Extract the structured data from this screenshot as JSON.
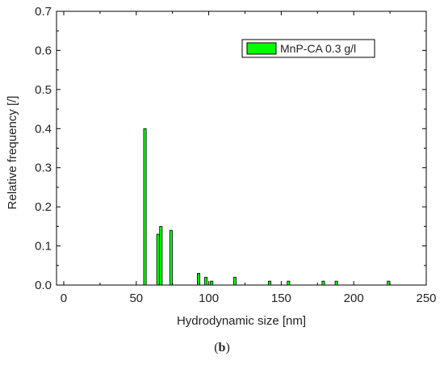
{
  "chart_data": {
    "type": "bar",
    "title": "",
    "xlabel": "Hydrodynamic size [nm]",
    "ylabel": "Relative frequency [/]",
    "xlim": [
      -5,
      250
    ],
    "ylim": [
      0,
      0.7
    ],
    "xticks": [
      "0",
      "50",
      "100",
      "150",
      "200",
      "250"
    ],
    "yticks": [
      "0.0",
      "0.1",
      "0.2",
      "0.3",
      "0.4",
      "0.5",
      "0.6",
      "0.7"
    ],
    "grid": false,
    "legend_position": "top-right",
    "bar_color": "#00ff00",
    "series": [
      {
        "name": "MnP-CA 0.3 g/l",
        "x": [
          56,
          65,
          67,
          74,
          93,
          98,
          102,
          118,
          142,
          155,
          179,
          188,
          224
        ],
        "values": [
          0.4,
          0.13,
          0.15,
          0.14,
          0.03,
          0.02,
          0.01,
          0.02,
          0.01,
          0.01,
          0.01,
          0.01,
          0.01
        ]
      }
    ]
  },
  "caption": {
    "open": "(",
    "letter": "b",
    "close": ")"
  }
}
